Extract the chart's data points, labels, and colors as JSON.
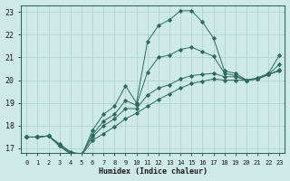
{
  "xlabel": "Humidex (Indice chaleur)",
  "line_color": "#2e6b5e",
  "bg_color": "#ceeae7",
  "grid_color": "#afd4d0",
  "xlim": [
    -0.5,
    23.5
  ],
  "ylim": [
    16.8,
    23.3
  ],
  "yticks": [
    17,
    18,
    19,
    20,
    21,
    22,
    23
  ],
  "xticks": [
    0,
    1,
    2,
    3,
    4,
    5,
    6,
    7,
    8,
    9,
    10,
    11,
    12,
    13,
    14,
    15,
    16,
    17,
    18,
    19,
    20,
    21,
    22,
    23
  ],
  "series": [
    {
      "x": [
        0,
        1,
        2,
        3,
        4,
        5,
        6,
        7,
        8,
        9,
        10,
        11,
        12,
        13,
        14,
        15,
        16,
        17,
        18,
        19,
        20,
        21,
        22,
        23
      ],
      "y": [
        17.5,
        17.5,
        17.55,
        17.1,
        16.75,
        16.65,
        17.8,
        18.5,
        18.85,
        19.75,
        19.0,
        21.7,
        22.4,
        22.65,
        23.05,
        23.05,
        22.55,
        21.85,
        20.4,
        20.3,
        20.0,
        20.1,
        20.3,
        21.1
      ]
    },
    {
      "x": [
        0,
        1,
        2,
        3,
        4,
        5,
        6,
        7,
        8,
        9,
        10,
        11,
        12,
        13,
        14,
        15,
        16,
        17,
        18,
        19,
        20,
        21,
        22,
        23
      ],
      "y": [
        17.5,
        17.5,
        17.55,
        17.15,
        16.8,
        16.7,
        17.35,
        17.65,
        17.95,
        18.3,
        18.55,
        18.85,
        19.15,
        19.4,
        19.65,
        19.85,
        19.95,
        20.05,
        20.0,
        20.0,
        20.0,
        20.05,
        20.25,
        20.4
      ]
    },
    {
      "x": [
        0,
        1,
        2,
        3,
        4,
        5,
        6,
        7,
        8,
        9,
        10,
        11,
        12,
        13,
        14,
        15,
        16,
        17,
        18,
        19,
        20,
        21,
        22,
        23
      ],
      "y": [
        17.5,
        17.5,
        17.55,
        17.2,
        16.85,
        16.75,
        17.5,
        18.0,
        18.3,
        18.75,
        18.75,
        19.35,
        19.65,
        19.8,
        20.05,
        20.2,
        20.25,
        20.3,
        20.15,
        20.15,
        20.0,
        20.05,
        20.25,
        20.45
      ]
    },
    {
      "x": [
        0,
        1,
        2,
        3,
        4,
        5,
        6,
        7,
        8,
        9,
        10,
        11,
        12,
        13,
        14,
        15,
        16,
        17,
        18,
        19,
        20,
        21,
        22,
        23
      ],
      "y": [
        17.5,
        17.5,
        17.55,
        17.15,
        16.8,
        16.7,
        17.6,
        18.2,
        18.5,
        19.1,
        18.9,
        20.35,
        21.0,
        21.1,
        21.35,
        21.45,
        21.25,
        21.05,
        20.3,
        20.2,
        20.0,
        20.05,
        20.25,
        20.7
      ]
    }
  ]
}
